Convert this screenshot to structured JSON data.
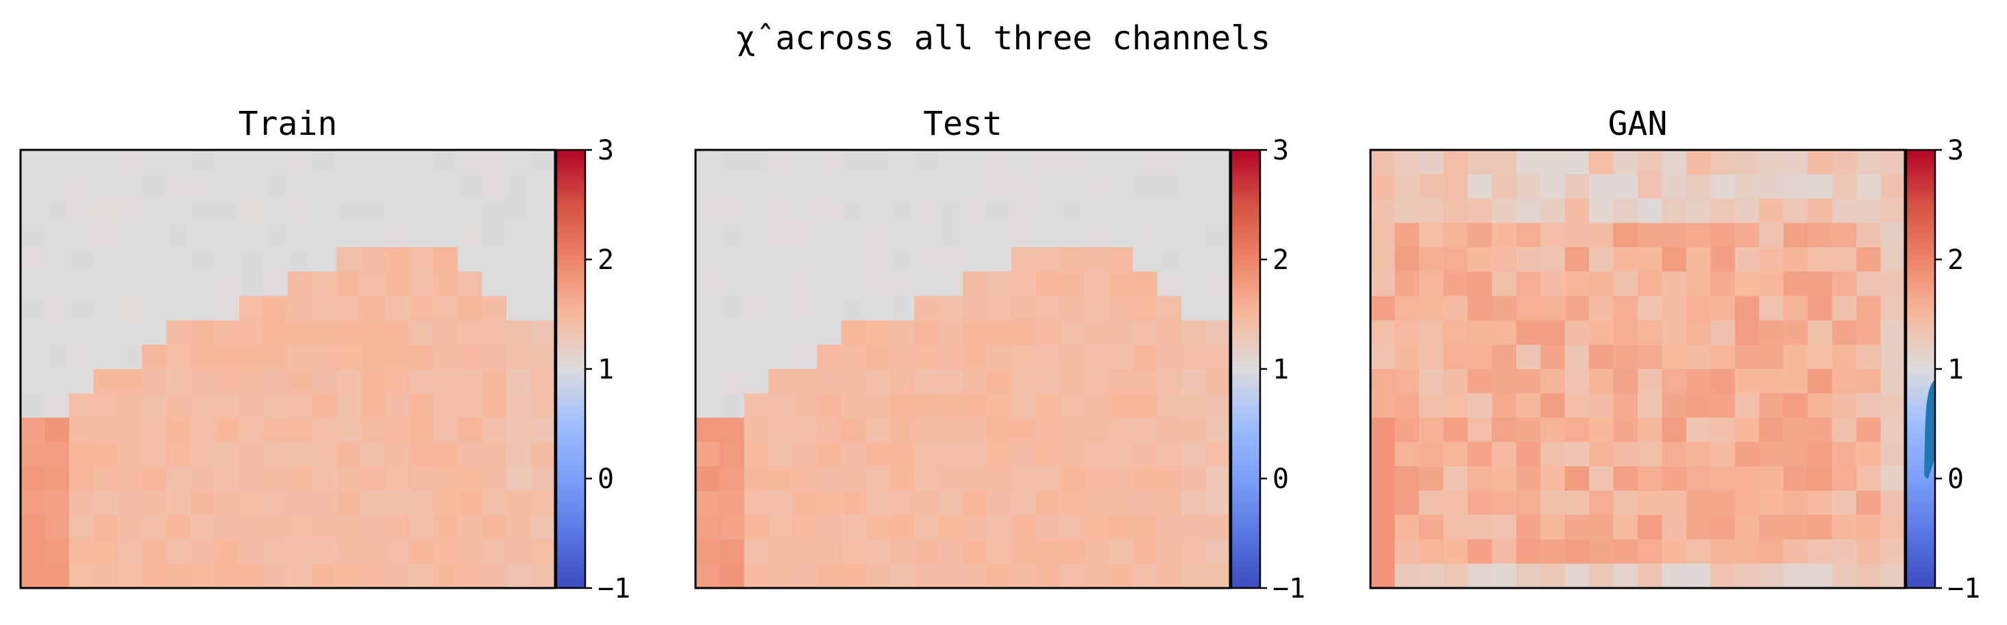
{
  "figure": {
    "title": "χ̂ across all three channels"
  },
  "chart_data": [
    {
      "type": "heatmap",
      "title": "Train",
      "grid": false,
      "colormap": "coolwarm",
      "color_range": [
        -1,
        3
      ],
      "colorbar": {
        "ticks": [
          3,
          2,
          1,
          0,
          -1
        ],
        "tick_labels": [
          "3",
          "2",
          "1",
          "0",
          "−1"
        ]
      },
      "rows": 18,
      "cols": 22,
      "description_of_values": "Cells are ~1.0 above a dome-shaped boundary and ~1.5–2.0 inside the dome"
    },
    {
      "type": "heatmap",
      "title": "Test",
      "grid": false,
      "colormap": "coolwarm",
      "color_range": [
        -1,
        3
      ],
      "colorbar": {
        "ticks": [
          3,
          2,
          1,
          0,
          -1
        ],
        "tick_labels": [
          "3",
          "2",
          "1",
          "0",
          "−1"
        ]
      },
      "rows": 18,
      "cols": 22
    },
    {
      "type": "heatmap",
      "title": "GAN",
      "grid": false,
      "colormap": "coolwarm",
      "color_range": [
        -1,
        3
      ],
      "colorbar": {
        "ticks": [
          3,
          2,
          1,
          0,
          -1
        ],
        "tick_labels": [
          "3",
          "2",
          "1",
          "0",
          "−1"
        ]
      },
      "rows": 18,
      "cols": 22,
      "colorbar_marker": {
        "color": "#1f77b4",
        "range": [
          0,
          0.9
        ]
      }
    }
  ]
}
